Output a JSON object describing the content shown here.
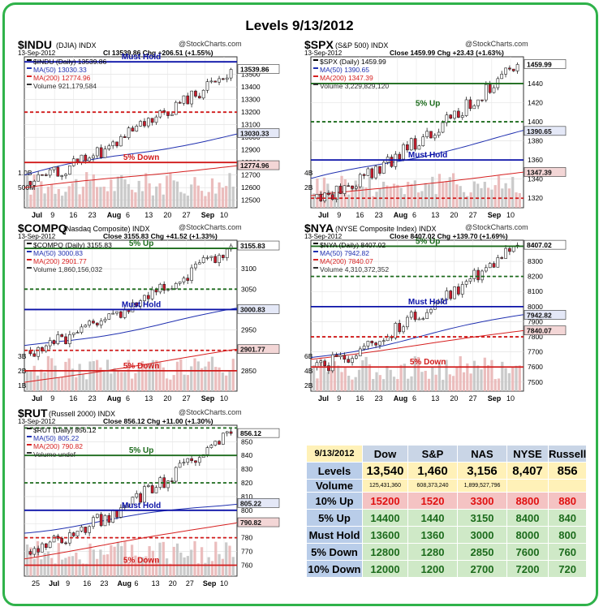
{
  "title": "Levels 9/13/2012",
  "credit": "@StockCharts.com",
  "charts": [
    {
      "id": "indu",
      "symbol": "$INDU",
      "name": "(DJIA)",
      "exchange": "INDX",
      "date": "13-Sep-2012",
      "quote_line": "Cl 13539.86  Chg +206.51 (+1.55%)",
      "legend": [
        "$INDU (Daily) 13539.86",
        "MA(50) 13030.33",
        "MA(200) 12774.96",
        "Volume 921,179,584"
      ],
      "price_range": [
        12440,
        13640
      ],
      "y_ticks": [
        12500,
        12600,
        12700,
        12800,
        12900,
        13000,
        13100,
        13200,
        13300,
        13400,
        13500
      ],
      "y_tick_labels": [
        "12500",
        "12600",
        "12700",
        "12800",
        "12900",
        "13000",
        "13100",
        "13200",
        "13300",
        "13400",
        "13500"
      ],
      "vol_labels": [
        "1.0B",
        "500M"
      ],
      "x_labels": [
        "Jul",
        "9",
        "16",
        "23",
        "Aug",
        "6",
        "13",
        "20",
        "27",
        "Sep",
        "10"
      ],
      "last_label": "13539.86",
      "ma50_label": "13030.33",
      "ma200_label": "12774.96",
      "start": 12650,
      "end": 13540,
      "ma50_start": 12700,
      "ma50_end": 13030,
      "ma200_start": 12600,
      "ma200_end": 12775,
      "levels": [
        {
          "price": 13600,
          "label": "Must Hold",
          "color": "#0b12a8",
          "style": "solid"
        },
        {
          "price": 13200,
          "label": "",
          "color": "#d11a1a",
          "style": "dashed"
        },
        {
          "price": 12800,
          "label": "5% Down",
          "color": "#d11a1a",
          "style": "solid"
        }
      ]
    },
    {
      "id": "spx",
      "symbol": "$SPX",
      "name": "(S&P 500)",
      "exchange": "INDX",
      "date": "13-Sep-2012",
      "quote_line": "Close 1459.99  Chg +23.43 (+1.63%)",
      "legend": [
        "$SPX (Daily) 1459.99",
        "MA(50) 1390.65",
        "MA(200) 1347.39",
        "Volume 3,229,829,120"
      ],
      "price_range": [
        1310,
        1468
      ],
      "y_ticks": [
        1320,
        1340,
        1360,
        1380,
        1400,
        1420,
        1440
      ],
      "y_tick_labels": [
        "1320",
        "1340",
        "1360",
        "1380",
        "1400",
        "1420",
        "1440"
      ],
      "vol_labels": [
        "4B",
        "2B"
      ],
      "x_labels": [
        "Jul",
        "9",
        "16",
        "23",
        "Aug",
        "6",
        "13",
        "20",
        "27",
        "Sep",
        "10"
      ],
      "last_label": "1459.99",
      "ma50_label": "1390.65",
      "ma200_label": "1347.39",
      "start": 1320,
      "end": 1460,
      "ma50_start": 1338,
      "ma50_end": 1390,
      "ma200_start": 1322,
      "ma200_end": 1347,
      "levels": [
        {
          "price": 1440,
          "label": "",
          "color": "#1c6b1c",
          "style": "solid"
        },
        {
          "price": 1420,
          "label": "5% Up",
          "color": "#1c6b1c",
          "style": "none"
        },
        {
          "price": 1400,
          "label": "",
          "color": "#1c6b1c",
          "style": "dashed"
        },
        {
          "price": 1360,
          "label": "Must Hold",
          "color": "#0b12a8",
          "style": "solid"
        },
        {
          "price": 1320,
          "label": "",
          "color": "#d11a1a",
          "style": "dashed"
        }
      ]
    },
    {
      "id": "compq",
      "symbol": "$COMPQ",
      "name": "(Nasdaq Composite)",
      "exchange": "INDX",
      "date": "13-Sep-2012",
      "quote_line": "Close 3155.83  Chg +41.52 (+1.33%)",
      "legend": [
        "$COMPQ (Daily) 3155.83",
        "MA(50) 3000.83",
        "MA(200) 2901.77",
        "Volume 1,860,156,032"
      ],
      "price_range": [
        2800,
        3170
      ],
      "y_ticks": [
        2850,
        2900,
        2950,
        3000,
        3050,
        3100
      ],
      "y_tick_labels": [
        "2850",
        "2900",
        "2950",
        "3000",
        "3050",
        "3100"
      ],
      "vol_labels": [
        "3B",
        "2B",
        "1B"
      ],
      "x_labels": [
        "Jul",
        "9",
        "16",
        "23",
        "Aug",
        "6",
        "13",
        "20",
        "27",
        "Sep",
        "10"
      ],
      "last_label": "3155.83",
      "ma50_label": "3000.83",
      "ma200_label": "2901.77",
      "start": 2900,
      "end": 3156,
      "ma50_start": 2905,
      "ma50_end": 3000,
      "ma200_start": 2820,
      "ma200_end": 2902,
      "levels": [
        {
          "price": 3150,
          "label": "5% Up",
          "color": "#1c6b1c",
          "style": "solid"
        },
        {
          "price": 3050,
          "label": "",
          "color": "#1c6b1c",
          "style": "dashed"
        },
        {
          "price": 3000,
          "label": "Must Hold",
          "color": "#0b12a8",
          "style": "solid"
        },
        {
          "price": 2900,
          "label": "",
          "color": "#d11a1a",
          "style": "dashed"
        },
        {
          "price": 2850,
          "label": "5% Down",
          "color": "#d11a1a",
          "style": "solid"
        }
      ]
    },
    {
      "id": "nya",
      "symbol": "$NYA",
      "name": "(NYSE Composite Index)",
      "exchange": "INDX",
      "date": "13-Sep-2012",
      "quote_line": "Close 8407.02  Chg +139.70 (+1.69%)",
      "legend": [
        "$NYA (Daily) 8407.02",
        "MA(50) 7942.82",
        "MA(200) 7840.07",
        "Volume 4,310,372,352"
      ],
      "price_range": [
        7440,
        8440
      ],
      "y_ticks": [
        7500,
        7600,
        7700,
        7800,
        7900,
        8000,
        8100,
        8200,
        8300
      ],
      "y_tick_labels": [
        "7500",
        "7600",
        "7700",
        "7800",
        "7900",
        "8000",
        "8100",
        "8200",
        "8300"
      ],
      "vol_labels": [
        "6B",
        "4B",
        "2B"
      ],
      "x_labels": [
        "Jul",
        "9",
        "16",
        "23",
        "Aug",
        "6",
        "13",
        "20",
        "27",
        "Sep",
        "10"
      ],
      "last_label": "8407.02",
      "ma50_label": "7942.82",
      "ma200_label": "7840.07",
      "start": 7600,
      "end": 8407,
      "ma50_start": 7660,
      "ma50_end": 7943,
      "ma200_start": 7650,
      "ma200_end": 7840,
      "levels": [
        {
          "price": 8400,
          "label": "5% Up",
          "color": "#1c6b1c",
          "style": "solid"
        },
        {
          "price": 8200,
          "label": "",
          "color": "#1c6b1c",
          "style": "dashed"
        },
        {
          "price": 8000,
          "label": "Must Hold",
          "color": "#0b12a8",
          "style": "solid"
        },
        {
          "price": 7800,
          "label": "",
          "color": "#d11a1a",
          "style": "dashed"
        },
        {
          "price": 7600,
          "label": "5% Down",
          "color": "#d11a1a",
          "style": "solid"
        }
      ]
    },
    {
      "id": "rut",
      "symbol": "$RUT",
      "name": "(Russell 2000)",
      "exchange": "INDX",
      "date": "13-Sep-2012",
      "quote_line": "Close 856.12  Chg +11.00 (+1.30%)",
      "legend": [
        "$RUT (Daily) 856.12",
        "MA(50) 805.22",
        "MA(200) 790.82",
        "Volume undef"
      ],
      "price_range": [
        752,
        862
      ],
      "y_ticks": [
        760,
        770,
        780,
        790,
        800,
        810,
        820,
        830,
        840,
        850
      ],
      "y_tick_labels": [
        "760",
        "770",
        "780",
        "790",
        "800",
        "810",
        "820",
        "830",
        "840",
        "850"
      ],
      "vol_labels": [],
      "x_labels": [
        "25",
        "Jul",
        "9",
        "16",
        "23",
        "Aug",
        "6",
        "13",
        "20",
        "27",
        "Sep",
        "10"
      ],
      "last_label": "856.12",
      "ma50_label": "805.22",
      "ma200_label": "790.82",
      "start": 770,
      "end": 856,
      "ma50_start": 785,
      "ma50_end": 805,
      "ma200_start": 765,
      "ma200_end": 791,
      "levels": [
        {
          "price": 860,
          "label": "",
          "color": "#1c6b1c",
          "style": "dashed"
        },
        {
          "price": 840,
          "label": "5% Up",
          "color": "#1c6b1c",
          "style": "solid"
        },
        {
          "price": 820,
          "label": "",
          "color": "#1c6b1c",
          "style": "dashed"
        },
        {
          "price": 800,
          "label": "Must Hold",
          "color": "#0b12a8",
          "style": "solid"
        },
        {
          "price": 780,
          "label": "",
          "color": "#d11a1a",
          "style": "dashed"
        },
        {
          "price": 760,
          "label": "5% Down",
          "color": "#d11a1a",
          "style": "solid"
        }
      ]
    }
  ],
  "table": {
    "date": "9/13/2012",
    "headers": [
      "Dow",
      "S&P",
      "NAS",
      "NYSE",
      "Russell"
    ],
    "rows": [
      {
        "label": "Levels",
        "values": [
          "13,540",
          "1,460",
          "3,156",
          "8,407",
          "856"
        ],
        "kind": "lv"
      },
      {
        "label": "Volume",
        "values": [
          "125,431,360",
          "608,373,240",
          "1,899,527,796",
          "",
          ""
        ],
        "kind": "vol"
      },
      {
        "label": "10% Up",
        "values": [
          "15200",
          "1520",
          "3300",
          "8800",
          "880"
        ],
        "kind": "red"
      },
      {
        "label": "5% Up",
        "values": [
          "14400",
          "1440",
          "3150",
          "8400",
          "840"
        ],
        "kind": "grn"
      },
      {
        "label": "Must Hold",
        "values": [
          "13600",
          "1360",
          "3000",
          "8000",
          "800"
        ],
        "kind": "grn"
      },
      {
        "label": "5% Down",
        "values": [
          "12800",
          "1280",
          "2850",
          "7600",
          "760"
        ],
        "kind": "grn"
      },
      {
        "label": "10% Down",
        "values": [
          "12000",
          "1200",
          "2700",
          "7200",
          "720"
        ],
        "kind": "grn"
      }
    ]
  },
  "chart_data": [
    {
      "type": "table",
      "title": "Levels 9/13/2012",
      "columns": [
        "9/13/2012",
        "Dow",
        "S&P",
        "NAS",
        "NYSE",
        "Russell"
      ],
      "rows": [
        [
          "Levels",
          "13,540",
          "1,460",
          "3,156",
          "8,407",
          "856"
        ],
        [
          "Volume",
          "125,431,360",
          "608,373,240",
          "1,899,527,796",
          "",
          ""
        ],
        [
          "10% Up",
          "15200",
          "1520",
          "3300",
          "8800",
          "880"
        ],
        [
          "5% Up",
          "14400",
          "1440",
          "3150",
          "8400",
          "840"
        ],
        [
          "Must Hold",
          "13600",
          "1360",
          "3000",
          "8000",
          "800"
        ],
        [
          "5% Down",
          "12800",
          "1280",
          "2850",
          "7600",
          "760"
        ],
        [
          "10% Down",
          "12000",
          "1200",
          "2700",
          "7200",
          "720"
        ]
      ]
    }
  ]
}
